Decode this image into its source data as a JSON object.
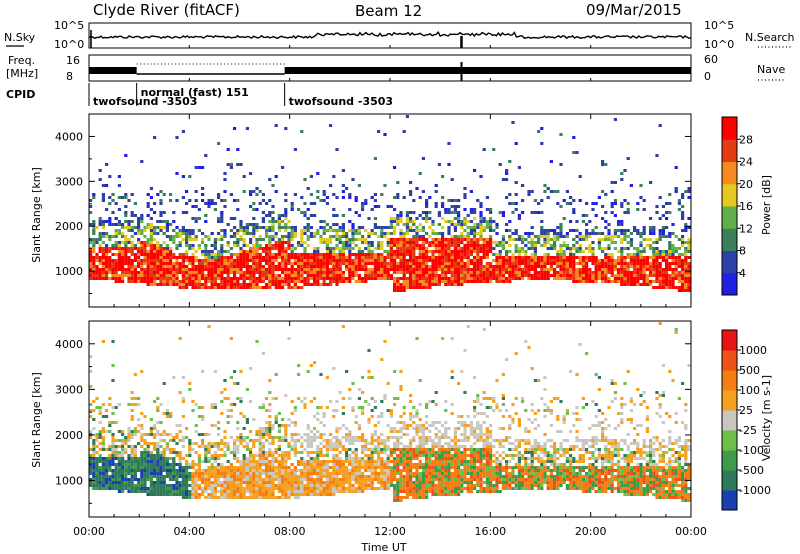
{
  "header": {
    "station": "Clyde River (fitACF)",
    "beam": "Beam 12",
    "date": "09/Mar/2015"
  },
  "strips": {
    "nsky_label": "N.Sky",
    "nsearch_label": "N.Search",
    "freq_label_line1": "Freq.",
    "freq_label_line2": "[MHz]",
    "nave_label": "Nave",
    "cpid_label": "CPID",
    "noise_ticks": [
      "10^5",
      "10^0"
    ],
    "freq_ticks": [
      "16",
      "8"
    ],
    "nave_ticks": [
      "60",
      "0"
    ],
    "cpid_segments": [
      {
        "start_h": 0.0,
        "end_h": 1.9,
        "label": "twofsound -3503"
      },
      {
        "start_h": 1.9,
        "end_h": 7.8,
        "label": "normal (fast) 151"
      },
      {
        "start_h": 7.8,
        "end_h": 24.0,
        "label": "twofsound -3503"
      }
    ]
  },
  "chart_data": [
    {
      "type": "heatmap",
      "title": "",
      "quantity": "Power",
      "xlabel": "Time UT",
      "ylabel": "Slant Range [km]",
      "xlim_hours": [
        0,
        24
      ],
      "ylim_km": [
        200,
        4500
      ],
      "xticks": [
        "00:00",
        "04:00",
        "08:00",
        "12:00",
        "16:00",
        "20:00",
        "00:00"
      ],
      "yticks": [
        1000,
        2000,
        3000,
        4000
      ],
      "colorbar": {
        "label": "Power [dB]",
        "tick_labels": [
          "4",
          "8",
          "12",
          "16",
          "20",
          "24",
          "28"
        ],
        "colors": [
          "#1f1fe6",
          "#2f3fa8",
          "#3a7f5a",
          "#5fb04a",
          "#e6c81e",
          "#f58a1e",
          "#e63a14",
          "#ff0000"
        ]
      }
    },
    {
      "type": "heatmap",
      "title": "",
      "quantity": "Velocity",
      "xlabel": "Time UT",
      "ylabel": "Slant Range [km]",
      "xlim_hours": [
        0,
        24
      ],
      "ylim_km": [
        200,
        4500
      ],
      "xticks": [
        "00:00",
        "04:00",
        "08:00",
        "12:00",
        "16:00",
        "20:00",
        "00:00"
      ],
      "yticks": [
        1000,
        2000,
        3000,
        4000
      ],
      "colorbar": {
        "label": "Velocity [m s-1]",
        "tick_labels": [
          "1000",
          "500",
          "100",
          "25",
          "-25",
          "-100",
          "-500",
          "-1000"
        ],
        "colors": [
          "#1a3fb0",
          "#2f7a5a",
          "#3f9a4a",
          "#6cc04a",
          "#c8c8c0",
          "#f5a01e",
          "#f57d14",
          "#f0501a",
          "#e61414"
        ]
      }
    }
  ],
  "xaxis": {
    "title": "Time UT"
  }
}
